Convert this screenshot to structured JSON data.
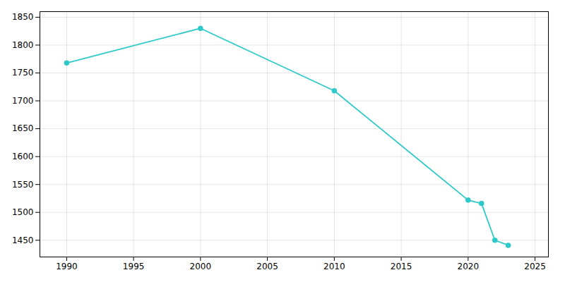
{
  "chart_data": {
    "type": "line",
    "x": [
      1990,
      2000,
      2010,
      2020,
      2021,
      2022,
      2023
    ],
    "values": [
      1768,
      1830,
      1718,
      1522,
      1516,
      1450,
      1441
    ],
    "color": "#2ec9c9",
    "marker": "circle",
    "xlim": [
      1988,
      2026
    ],
    "ylim": [
      1420,
      1860
    ],
    "xticks": [
      1990,
      1995,
      2000,
      2005,
      2010,
      2015,
      2020,
      2025
    ],
    "yticks": [
      1450,
      1500,
      1550,
      1600,
      1650,
      1700,
      1750,
      1800,
      1850
    ],
    "grid": true
  }
}
